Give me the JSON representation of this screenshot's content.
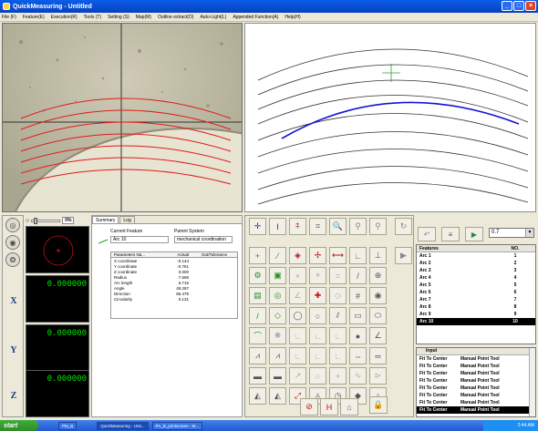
{
  "window": {
    "title": "QuickMeasuring - Untitled"
  },
  "menu": [
    "File (F)",
    "Feature(E)",
    "Execution(R)",
    "Tools (T)",
    "Setting (S)",
    "Map(M)",
    "Outline extract(O)",
    "Auto-Light(L)",
    "Appended Function(A)",
    "Help(H)"
  ],
  "slider": {
    "percent": "0%",
    "value_fraction": 0.0
  },
  "dro": {
    "x": "0.000000",
    "y": "0.000000",
    "z": "0.000000",
    "x_label": "X",
    "y_label": "Y",
    "z_label": "Z"
  },
  "tabs": [
    "Summary",
    "Log"
  ],
  "summary": {
    "current_feature_label": "Current Feature",
    "parent_system_label": "Parent System",
    "current_feature": "Arc 10",
    "parent_system": "mechanical coordination",
    "headers": [
      "Parameters Na...",
      "Actual",
      "Out/Tolerance"
    ],
    "rows": [
      [
        "X coordinate",
        "-0.144",
        ""
      ],
      [
        "Y coordinate",
        "-0.751",
        ""
      ],
      [
        "Z coordinate",
        "0.000",
        ""
      ],
      [
        "Radius",
        "7.568",
        ""
      ],
      [
        "Arc length",
        "6.715",
        ""
      ],
      [
        "Angle",
        "49.287",
        ""
      ],
      [
        "Direction",
        "86.479",
        ""
      ],
      [
        "Circularity",
        "0.131",
        ""
      ]
    ]
  },
  "toolbar_dropdown": "0.7",
  "features": {
    "headers": [
      "Features",
      "NO."
    ],
    "rows": [
      [
        "Arc 1",
        "1"
      ],
      [
        "Arc 2",
        "2"
      ],
      [
        "Arc 3",
        "3"
      ],
      [
        "Arc 4",
        "4"
      ],
      [
        "Arc 5",
        "5"
      ],
      [
        "Arc 6",
        "6"
      ],
      [
        "Arc 7",
        "7"
      ],
      [
        "Arc 8",
        "8"
      ],
      [
        "Arc 9",
        "9"
      ],
      [
        "Arc 10",
        "10"
      ]
    ],
    "selected": 9
  },
  "input": {
    "header": "Input",
    "rows": [
      [
        "Fit To Center",
        "Manual Point Tool"
      ],
      [
        "Fit To Center",
        "Manual Point Tool"
      ],
      [
        "Fit To Center",
        "Manual Point Tool"
      ],
      [
        "Fit To Center",
        "Manual Point Tool"
      ],
      [
        "Fit To Center",
        "Manual Point Tool"
      ],
      [
        "Fit To Center",
        "Manual Point Tool"
      ],
      [
        "Fit To Center",
        "Manual Point Tool"
      ],
      [
        "Fit To Center",
        "Manual Point Tool"
      ]
    ]
  },
  "taskbar": {
    "start": "start",
    "tasks": [
      "PM_B",
      "QuickMeasuring - Unti...",
      "PA_B_printscreen - M..."
    ],
    "clock": "2:44 AM"
  },
  "colors": {
    "highlight_arc": "#1414d8",
    "arc_red": "#e11b1b",
    "dro_green": "#00e000"
  }
}
